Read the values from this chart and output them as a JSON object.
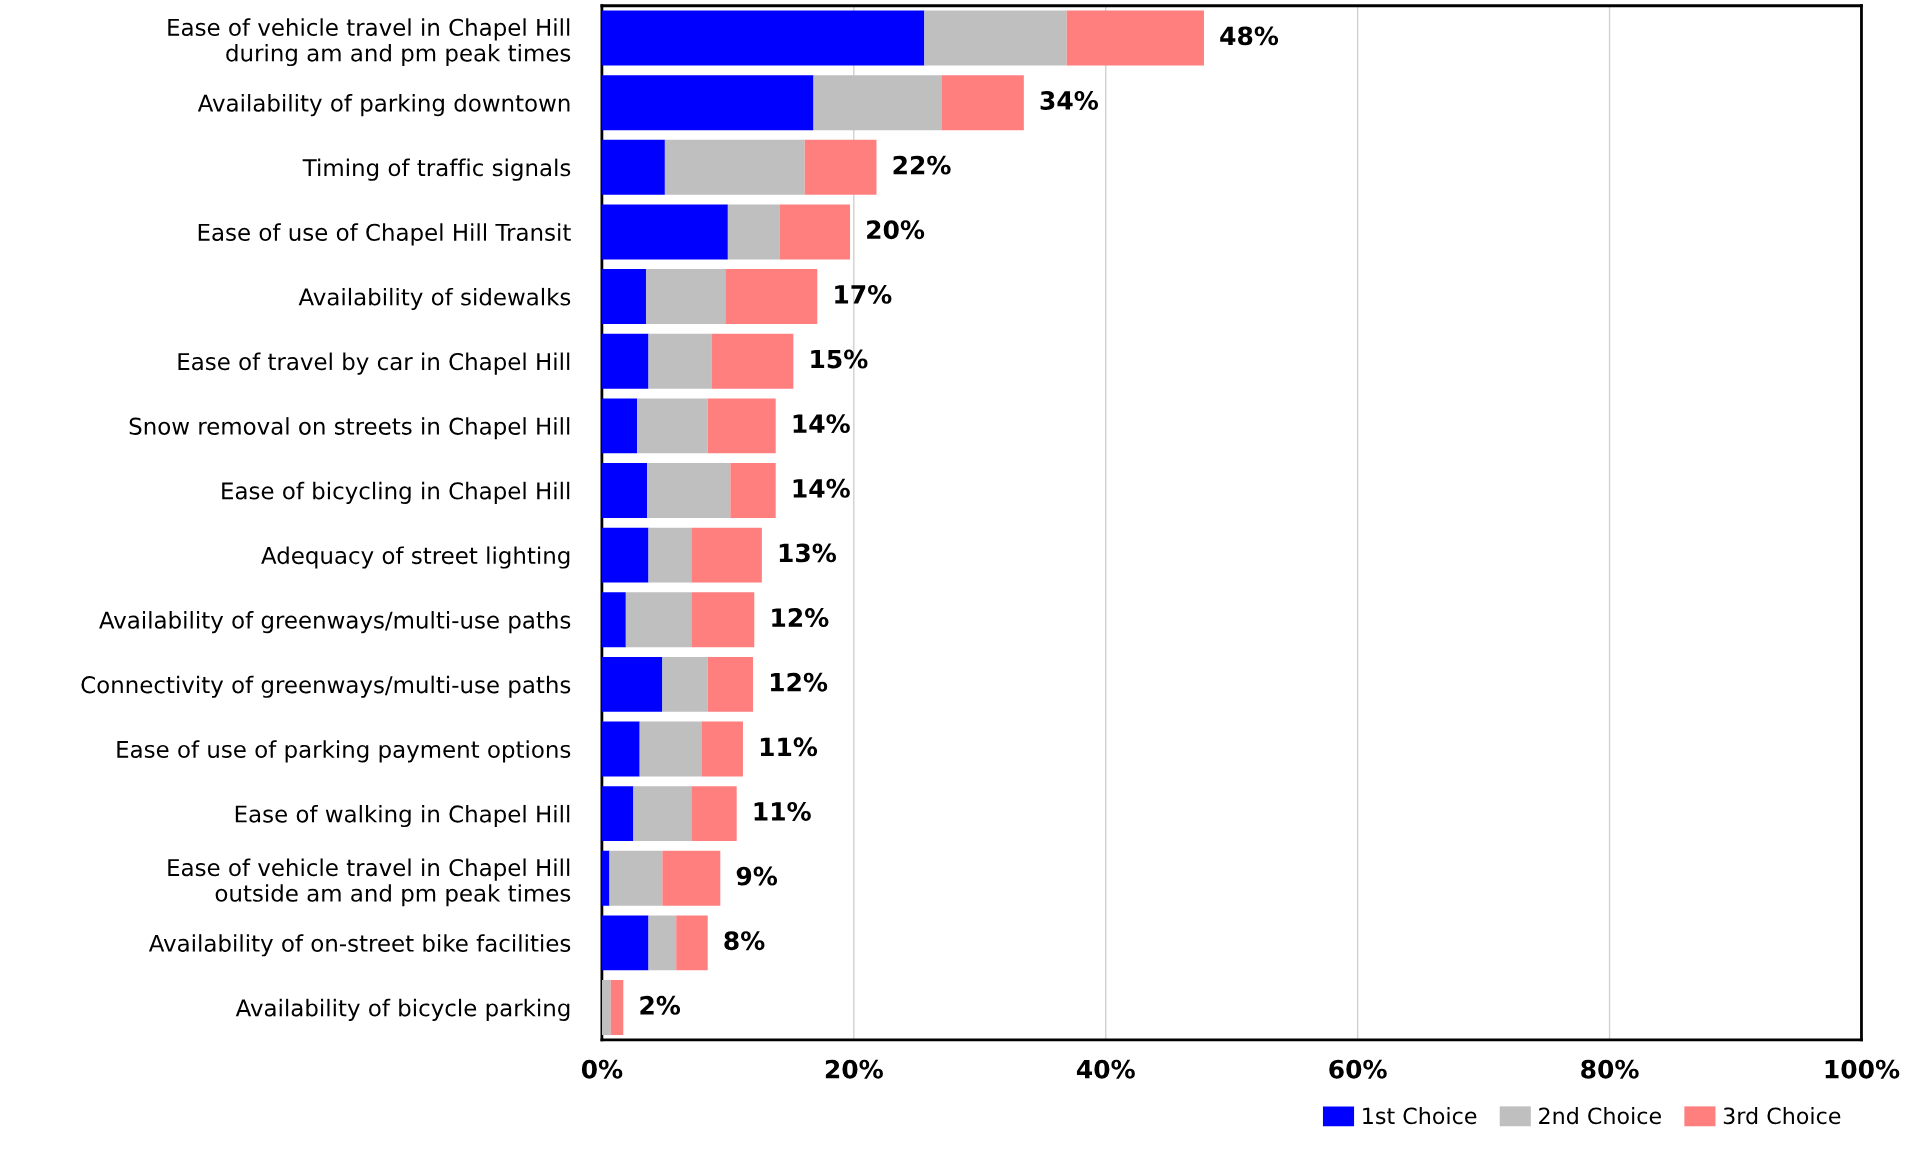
{
  "chart_data": {
    "type": "bar",
    "orientation": "horizontal",
    "stacked": true,
    "categories": [
      "Ease of vehicle travel in Chapel Hill\nduring am and pm peak times",
      "Availability of parking downtown",
      "Timing of traffic signals",
      "Ease of use of Chapel Hill Transit",
      "Availability of sidewalks",
      "Ease of travel by car in Chapel Hill",
      "Snow removal on streets in Chapel Hill",
      "Ease of bicycling in Chapel Hill",
      "Adequacy of street lighting",
      "Availability of greenways/multi-use paths",
      "Connectivity of greenways/multi-use paths",
      "Ease of use of parking payment options",
      "Ease of walking in Chapel Hill",
      "Ease of vehicle travel in Chapel Hill\noutside am and pm peak times",
      "Availability of on-street bike facilities",
      "Availability of bicycle parking"
    ],
    "series": [
      {
        "name": "1st Choice",
        "color": "#0000ff",
        "values": [
          25.6,
          16.8,
          5.0,
          10.0,
          3.5,
          3.7,
          2.8,
          3.6,
          3.7,
          1.9,
          4.8,
          3.0,
          2.5,
          0.6,
          3.7,
          0.0
        ]
      },
      {
        "name": "2nd Choice",
        "color": "#bfbfbf",
        "values": [
          11.3,
          10.2,
          11.1,
          4.1,
          6.3,
          5.0,
          5.6,
          6.6,
          3.4,
          5.2,
          3.6,
          4.9,
          4.6,
          4.2,
          2.2,
          0.7
        ]
      },
      {
        "name": "3rd Choice",
        "color": "#ff7f7f",
        "values": [
          10.9,
          6.5,
          5.7,
          5.6,
          7.3,
          6.5,
          5.4,
          3.6,
          5.6,
          5.0,
          3.6,
          3.3,
          3.6,
          4.6,
          2.5,
          1.0
        ]
      }
    ],
    "totals": [
      "48%",
      "34%",
      "22%",
      "20%",
      "17%",
      "15%",
      "14%",
      "14%",
      "13%",
      "12%",
      "12%",
      "11%",
      "11%",
      "9%",
      "8%",
      "2%"
    ],
    "xlim": [
      0,
      100
    ],
    "xticks": [
      {
        "value": 0,
        "label": "0%"
      },
      {
        "value": 20,
        "label": "20%"
      },
      {
        "value": 40,
        "label": "40%"
      },
      {
        "value": 60,
        "label": "60%"
      },
      {
        "value": 80,
        "label": "80%"
      },
      {
        "value": 100,
        "label": "100%"
      }
    ],
    "grid": "x",
    "legend": "bottom right"
  }
}
